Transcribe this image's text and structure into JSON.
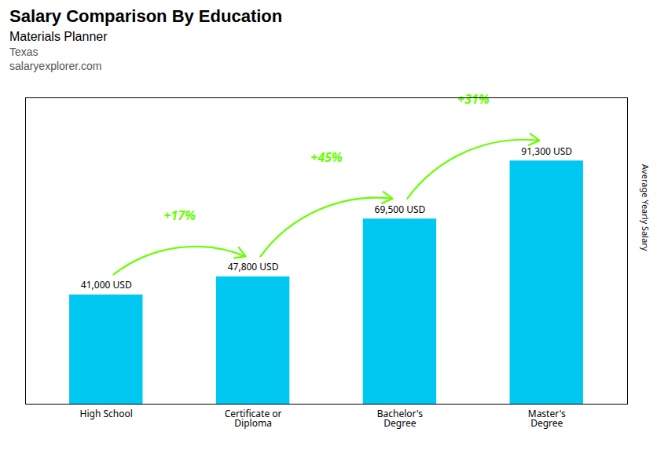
{
  "chart_data": {
    "type": "bar",
    "title": "Salary Comparison By Education",
    "subtitle": "Materials Planner",
    "ylabel": "Average Yearly Salary",
    "categories": [
      "High School",
      "Certificate or\nDiploma",
      "Bachelor's\nDegree",
      "Master's\nDegree"
    ],
    "values": [
      41000,
      47800,
      69500,
      91300
    ],
    "value_labels": [
      "41,000 USD",
      "47,800 USD",
      "69,500 USD",
      "91,300 USD"
    ],
    "data_labels": true,
    "color": "#00c8f0",
    "ylim": [
      0,
      115000
    ],
    "yticks": [],
    "tick_labels": "x",
    "annotations": [
      {
        "text": "Texas"
      },
      {
        "text": "salaryexplorer.com"
      },
      {
        "text": "+17%",
        "from": "High School",
        "to": "Certificate or\nDiploma",
        "color": "#66ff00"
      },
      {
        "text": "+45%",
        "from": "Certificate or\nDiploma",
        "to": "Bachelor's\nDegree",
        "color": "#66ff00"
      },
      {
        "text": "+31%",
        "from": "Bachelor's\nDegree",
        "to": "Master's\nDegree",
        "color": "#66ff00"
      }
    ]
  }
}
